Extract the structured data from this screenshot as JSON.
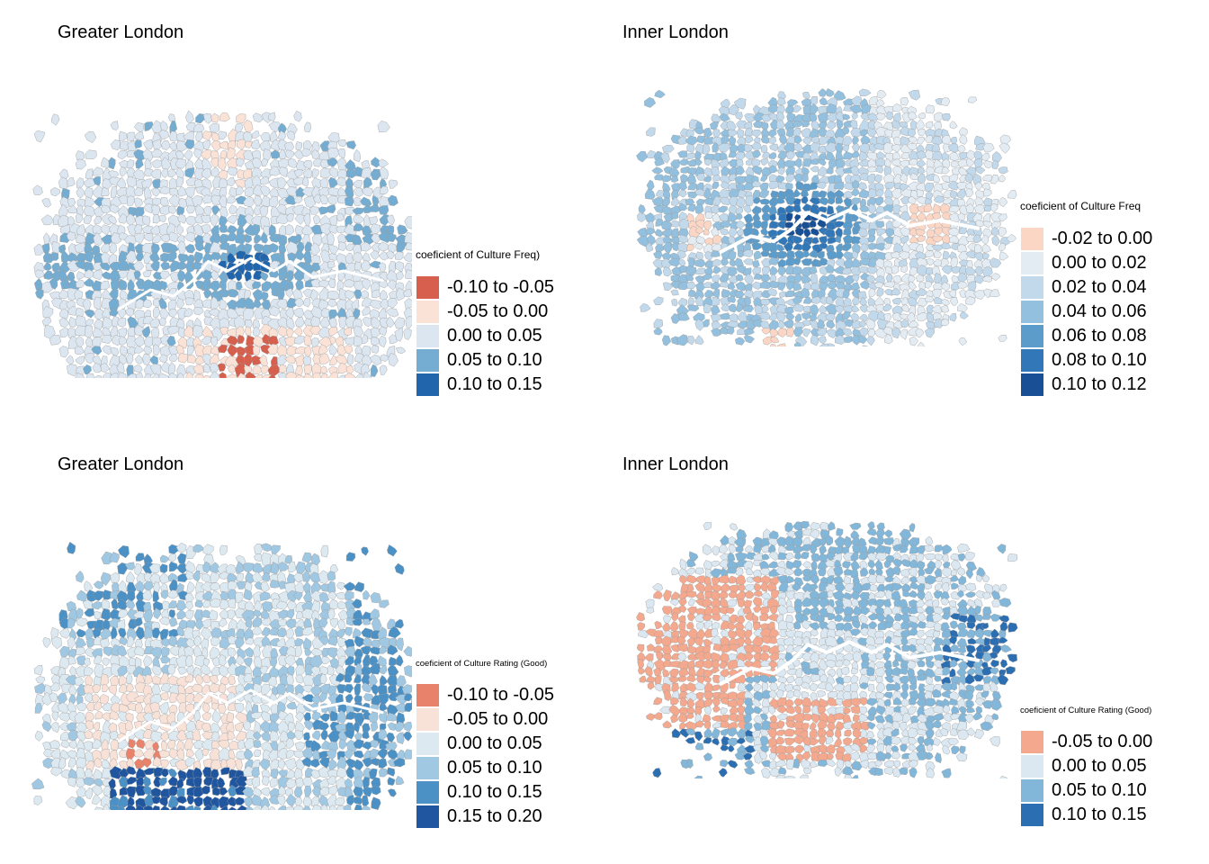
{
  "panels": [
    {
      "id": "p1",
      "title": "Greater London",
      "legend_title": "coeficient of Culture Freq)",
      "legend": [
        {
          "label": "-0.10 to -0.05",
          "color": "#d6604d"
        },
        {
          "label": "-0.05 to 0.00",
          "color": "#fbe2d7"
        },
        {
          "label": "0.00 to 0.05",
          "color": "#dbe6f0"
        },
        {
          "label": "0.05 to 0.10",
          "color": "#74add1"
        },
        {
          "label": "0.10 to 0.15",
          "color": "#2166ac"
        }
      ]
    },
    {
      "id": "p2",
      "title": "Inner London",
      "legend_title": "coeficient of Culture Freq",
      "legend": [
        {
          "label": "-0.02 to 0.00",
          "color": "#fcd6c4"
        },
        {
          "label": "0.00 to 0.02",
          "color": "#e3ebf3"
        },
        {
          "label": "0.02 to 0.04",
          "color": "#c2d9ec"
        },
        {
          "label": "0.04 to 0.06",
          "color": "#92c0de"
        },
        {
          "label": "0.06 to 0.08",
          "color": "#5b9ccb"
        },
        {
          "label": "0.08 to 0.10",
          "color": "#3278b8"
        },
        {
          "label": "0.10 to 0.12",
          "color": "#184f95"
        }
      ]
    },
    {
      "id": "p3",
      "title": "Greater London",
      "legend_title": "coeficient of Culture Rating (Good)",
      "legend": [
        {
          "label": "-0.10 to -0.05",
          "color": "#e8826a"
        },
        {
          "label": "-0.05 to 0.00",
          "color": "#f8e2d8"
        },
        {
          "label": "0.00 to 0.05",
          "color": "#dde9f1"
        },
        {
          "label": "0.05 to 0.10",
          "color": "#a0c8e2"
        },
        {
          "label": "0.10 to 0.15",
          "color": "#4b91c5"
        },
        {
          "label": "0.15 to 0.20",
          "color": "#1f569f"
        }
      ]
    },
    {
      "id": "p4",
      "title": "Inner London",
      "legend_title": "coeficient of Culture Rating (Good)",
      "legend": [
        {
          "label": "-0.05 to 0.00",
          "color": "#f4a98e"
        },
        {
          "label": "0.00 to 0.05",
          "color": "#dbe8f1"
        },
        {
          "label": "0.05 to 0.10",
          "color": "#83b7da"
        },
        {
          "label": "0.10 to 0.15",
          "color": "#2c6eb2"
        }
      ]
    }
  ]
}
